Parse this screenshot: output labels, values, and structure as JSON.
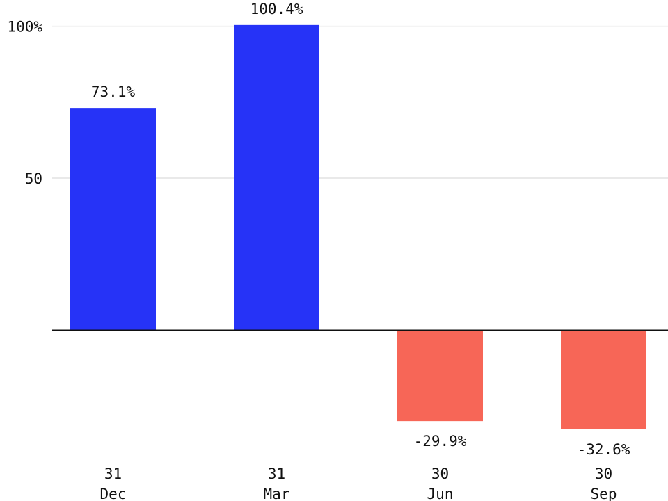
{
  "chart_data": {
    "type": "bar",
    "categories": [
      {
        "line1": "31",
        "line2": "Dec"
      },
      {
        "line1": "31",
        "line2": "Mar"
      },
      {
        "line1": "30",
        "line2": "Jun"
      },
      {
        "line1": "30",
        "line2": "Sep"
      }
    ],
    "values": [
      73.1,
      100.4,
      -29.9,
      -32.6
    ],
    "data_labels": [
      "73.1%",
      "100.4%",
      "-29.9%",
      "-32.6%"
    ],
    "y_ticks": [
      {
        "value": 50,
        "label": "50"
      },
      {
        "value": 100,
        "label": "100%"
      }
    ],
    "ylim": [
      -45,
      108
    ],
    "grid": true,
    "colors": {
      "positive": "#2633f7",
      "negative": "#f76657",
      "gridline": "#e2e2e2",
      "baseline": "#111111"
    }
  }
}
